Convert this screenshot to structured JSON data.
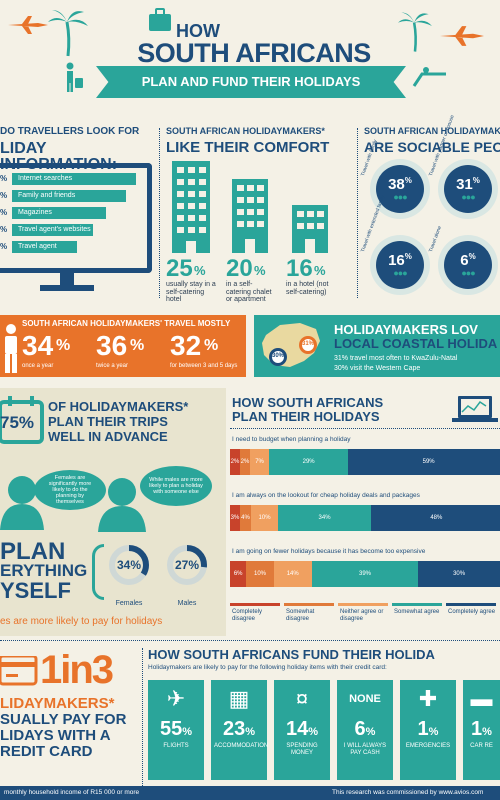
{
  "header": {
    "line1": "HOW",
    "line2": "SOUTH AFRICANS",
    "line3": "PLAN AND FUND THEIR HOLIDAYS"
  },
  "info_sources": {
    "title1": "DO TRAVELLERS LOOK FOR",
    "title2": "LIDAY INFORMATION:",
    "items": [
      {
        "pct": "%",
        "label": "Internet searches",
        "share": 0.95
      },
      {
        "pct": "%",
        "label": "Family and friends",
        "share": 0.88
      },
      {
        "pct": "%",
        "label": "Magazines",
        "share": 0.72
      },
      {
        "pct": "%",
        "label": "Travel agent's websites",
        "share": 0.62
      },
      {
        "pct": "%",
        "label": "Travel agent",
        "share": 0.5
      }
    ]
  },
  "comfort": {
    "title1": "SOUTH AFRICAN HOLIDAYMAKERS*",
    "title2": "LIKE THEIR COMFORT",
    "stats": [
      {
        "value": "25",
        "unit": "%",
        "label": "usually stay in a self-catering hotel"
      },
      {
        "value": "20",
        "unit": "%",
        "label": "in a self-catering chalet or apartment"
      },
      {
        "value": "16",
        "unit": "%",
        "label": "in a hotel (not self-catering)"
      }
    ]
  },
  "sociable": {
    "title1": "SOUTH AFRICAN HOLIDAYMAKE",
    "title2": "ARE SOCIABLE PEOP",
    "items": [
      {
        "value": "38",
        "unit": "%",
        "label": "Travel with family"
      },
      {
        "value": "31",
        "unit": "%",
        "label": "Travel with partner or spouse"
      },
      {
        "value": "16",
        "unit": "%",
        "label": "Travel with extended family"
      },
      {
        "value": "6",
        "unit": "%",
        "label": "Travel alone"
      }
    ]
  },
  "frequency": {
    "title": "SOUTH AFRICAN HOLIDAYMAKERS' TRAVEL MOSTLY",
    "items": [
      {
        "value": "34",
        "unit": "%",
        "label": "once a year"
      },
      {
        "value": "36",
        "unit": "%",
        "label": "twice a year"
      },
      {
        "value": "32",
        "unit": "%",
        "label": "for between 3 and 5 days"
      }
    ]
  },
  "coastal": {
    "title1": "HOLIDAYMAKERS LOV",
    "title2": "LOCAL COASTAL HOLIDA",
    "pin1": "30%",
    "pin2": "31%",
    "line1": "31% travel most often to KwaZulu-Natal",
    "line2": "30% visit the Western Cape"
  },
  "advance": {
    "pct": "75%",
    "text1": "OF HOLIDAYMAKERS*",
    "text2": "PLAN THEIR TRIPS",
    "text3": "WELL IN ADVANCE",
    "bubble_f": "Females are significantly more likely to do the planning by themselves",
    "bubble_m": "While males are more likely to plan a holiday with someone else",
    "plan1": "PLAN",
    "plan2": "ERYTHING",
    "plan3": "YSELF",
    "female_pct": "34%",
    "male_pct": "27%",
    "female_share": 0.34,
    "male_share": 0.27,
    "female_label": "Females",
    "male_label": "Males",
    "footer": "es are more likely to pay for holidays"
  },
  "planning": {
    "title1": "HOW SOUTH AFRICANS",
    "title2": "PLAN THEIR HOLIDAYS",
    "colors": [
      "#c8432b",
      "#e07a3a",
      "#f0a060",
      "#2aa59a",
      "#1e4d7b"
    ],
    "legend": [
      "Completely disagree",
      "Somewhat disagree",
      "Neither agree or disagree",
      "Somewhat agree",
      "Completely agree"
    ],
    "statements": [
      {
        "text": "I need to budget when planning a holiday",
        "values": [
          2,
          2,
          7,
          29,
          59
        ],
        "labels": [
          "2%",
          "2%",
          "7%",
          "29%",
          "59%"
        ]
      },
      {
        "text": "I am always on the lookout for cheap holiday deals and packages",
        "values": [
          3,
          4,
          10,
          34,
          48
        ],
        "labels": [
          "3%",
          "4%",
          "10%",
          "34%",
          "48%"
        ]
      },
      {
        "text": "I am going on fewer holidays because it has become too expensive",
        "values": [
          6,
          10,
          14,
          39,
          30
        ],
        "labels": [
          "6%",
          "10%",
          "14%",
          "39%",
          "30%"
        ]
      }
    ]
  },
  "credit": {
    "big": "1in3",
    "line1": "LIDAYMAKERS*",
    "line2": "SUALLY PAY FOR",
    "line3": "LIDAYS WITH A",
    "line4": "REDIT CARD"
  },
  "funding": {
    "title": "HOW SOUTH AFRICANS FUND THEIR HOLIDA",
    "subtitle": "Holidaymakers are likely to pay for the following holiday items with their credit card:",
    "items": [
      {
        "icon": "airplane-icon",
        "value": "55",
        "unit": "%",
        "label": "FLIGHTS"
      },
      {
        "icon": "building-icon",
        "value": "23",
        "unit": "%",
        "label": "ACCOMMODATION"
      },
      {
        "icon": "money-icon",
        "value": "14",
        "unit": "%",
        "label": "SPENDING MONEY"
      },
      {
        "icon": "none",
        "top": "NONE",
        "value": "6",
        "unit": "%",
        "label": "I WILL ALWAYS PAY CASH"
      },
      {
        "icon": "cross-icon",
        "value": "1",
        "unit": "%",
        "label": "EMERGENCIES"
      },
      {
        "icon": "car-icon",
        "value": "1",
        "unit": "%",
        "label": "CAR RE"
      }
    ]
  },
  "footer": {
    "left": "monthly household income of R15 000 or more",
    "right": "This research was commissioned by www.avios.com"
  }
}
